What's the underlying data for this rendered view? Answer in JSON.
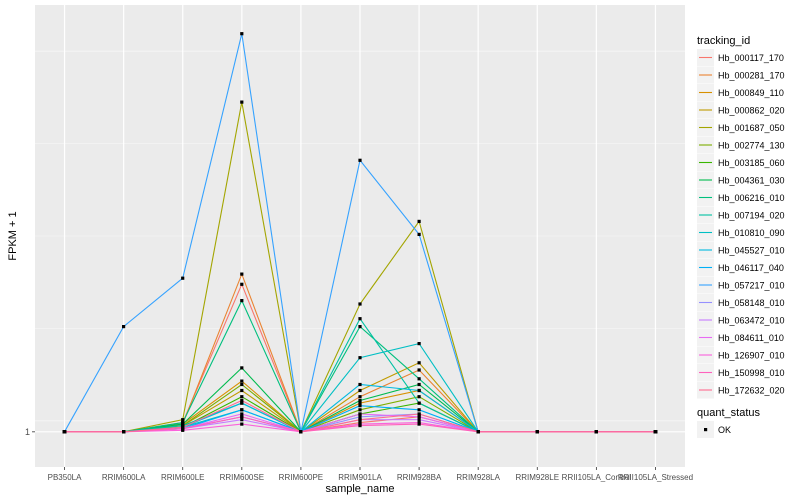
{
  "chart_data": {
    "type": "line",
    "title": "",
    "xlabel": "sample_name",
    "ylabel": "FPKM + 1",
    "categories": [
      "PB350LA",
      "RRIM600LA",
      "RRIM600LE",
      "RRIM600SE",
      "RRIM600PE",
      "RRIM901LA",
      "RRIM928BA",
      "RRIM928LA",
      "RRIM928LE",
      "RRII105LA_Control",
      "RRII105LA_Stressed"
    ],
    "y_ticks": [
      "1"
    ],
    "ylim": [
      0.8,
      15
    ],
    "grid": true,
    "legend_placement": "right",
    "legend_title": "tracking_id",
    "legend2_title": "quant_status",
    "legend2_entries": [
      "OK"
    ],
    "series": [
      {
        "name": "Hb_000117_170",
        "color": "#F8766D",
        "values": [
          1,
          1,
          1.06,
          2.55,
          1,
          1.06,
          1.1,
          1,
          1,
          1,
          1
        ]
      },
      {
        "name": "Hb_000281_170",
        "color": "#EA8331",
        "values": [
          1,
          1,
          1.05,
          2.72,
          1,
          1.25,
          1.48,
          1,
          1,
          1,
          1
        ]
      },
      {
        "name": "Hb_000849_110",
        "color": "#D89000",
        "values": [
          1,
          1,
          1.05,
          1.38,
          1,
          1.2,
          1.3,
          1,
          1,
          1,
          1
        ]
      },
      {
        "name": "Hb_000862_020",
        "color": "#C09B00",
        "values": [
          1,
          1,
          1.04,
          1.3,
          1,
          1.3,
          1.55,
          1,
          1,
          1,
          1
        ]
      },
      {
        "name": "Hb_001687_050",
        "color": "#A3A500",
        "values": [
          1,
          1,
          1.08,
          8.1,
          1,
          2.25,
          3.8,
          1,
          1,
          1,
          1
        ]
      },
      {
        "name": "Hb_002774_130",
        "color": "#7CAE00",
        "values": [
          1,
          1,
          1.04,
          1.35,
          1,
          1.15,
          1.25,
          1,
          1,
          1,
          1
        ]
      },
      {
        "name": "Hb_003185_060",
        "color": "#39B600",
        "values": [
          1,
          1,
          1.03,
          1.25,
          1,
          1.12,
          1.2,
          1,
          1,
          1,
          1
        ]
      },
      {
        "name": "Hb_004361_030",
        "color": "#00BB4E",
        "values": [
          1,
          1,
          1.05,
          1.5,
          1,
          1.22,
          1.35,
          1,
          1,
          1,
          1
        ]
      },
      {
        "name": "Hb_006216_010",
        "color": "#00BF7D",
        "values": [
          1,
          1,
          1.06,
          2.3,
          1,
          1.95,
          1.4,
          1,
          1,
          1,
          1
        ]
      },
      {
        "name": "Hb_007194_020",
        "color": "#00C1A3",
        "values": [
          1,
          1,
          1.04,
          1.2,
          1,
          2.05,
          1.2,
          1,
          1,
          1,
          1
        ]
      },
      {
        "name": "Hb_010810_090",
        "color": "#00BFC4",
        "values": [
          1,
          1,
          1.03,
          1.15,
          1,
          1.6,
          1.75,
          1,
          1,
          1,
          1
        ]
      },
      {
        "name": "Hb_045527_010",
        "color": "#00BAE0",
        "values": [
          1,
          1,
          1.03,
          1.2,
          1,
          1.35,
          1.3,
          1,
          1,
          1,
          1
        ]
      },
      {
        "name": "Hb_046117_040",
        "color": "#00B0F6",
        "values": [
          1,
          1,
          1.02,
          1.15,
          1,
          1.18,
          1.15,
          1,
          1,
          1,
          1
        ]
      },
      {
        "name": "Hb_057217_010",
        "color": "#35A2FF",
        "values": [
          1,
          1.95,
          2.65,
          12.5,
          1,
          5.6,
          3.5,
          1,
          1,
          1,
          1
        ]
      },
      {
        "name": "Hb_058148_010",
        "color": "#9590FF",
        "values": [
          1,
          1,
          1.02,
          1.1,
          1,
          1.1,
          1.12,
          1,
          1,
          1,
          1
        ]
      },
      {
        "name": "Hb_063472_010",
        "color": "#C77CFF",
        "values": [
          1,
          1,
          1.02,
          1.08,
          1,
          1.08,
          1.08,
          1,
          1,
          1,
          1
        ]
      },
      {
        "name": "Hb_084611_010",
        "color": "#E76BF3",
        "values": [
          1,
          1,
          1.02,
          1.12,
          1,
          1.12,
          1.1,
          1,
          1,
          1,
          1
        ]
      },
      {
        "name": "Hb_126907_010",
        "color": "#FA62DB",
        "values": [
          1,
          1,
          1.01,
          1.05,
          1,
          1.05,
          1.06,
          1,
          1,
          1,
          1
        ]
      },
      {
        "name": "Hb_150998_010",
        "color": "#FF62BC",
        "values": [
          1,
          1,
          1.02,
          1.1,
          1,
          1.04,
          1.05,
          1,
          1,
          1,
          1
        ]
      },
      {
        "name": "Hb_172632_020",
        "color": "#FF6C91",
        "values": [
          1,
          1,
          1.03,
          1.22,
          1,
          1.08,
          1.12,
          1,
          1,
          1,
          1
        ]
      }
    ]
  }
}
